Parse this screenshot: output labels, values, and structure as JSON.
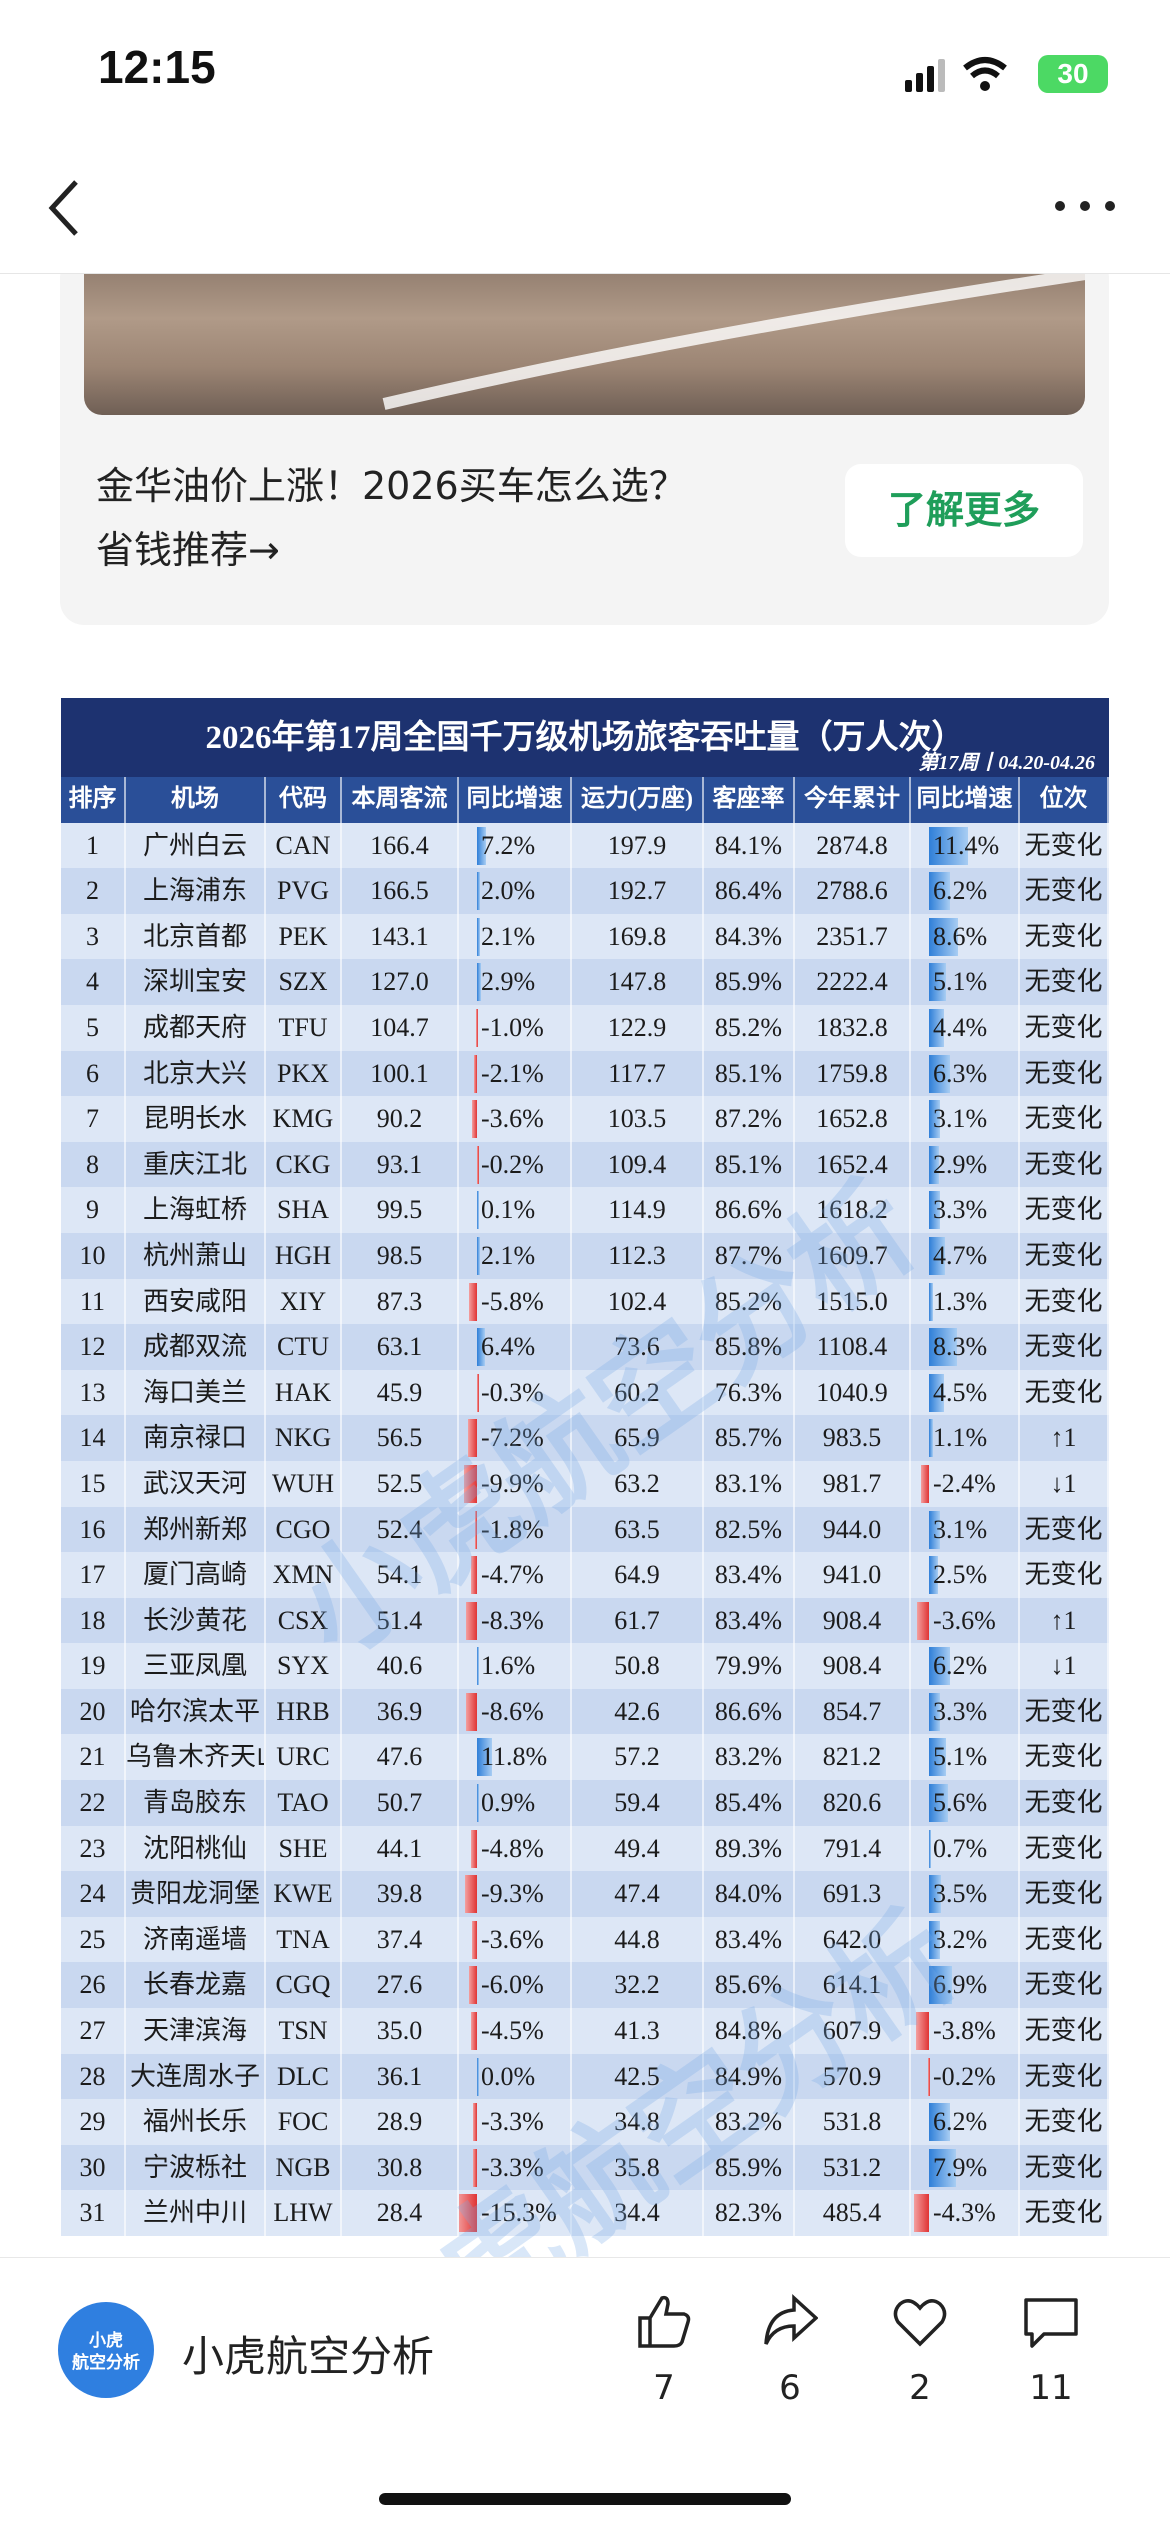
{
  "status_bar": {
    "time": "12:15",
    "battery": "30"
  },
  "ad": {
    "text_line1": "金华油价上涨！2026买车怎么选？",
    "text_line2": "省钱推荐→",
    "button": "了解更多"
  },
  "table": {
    "title": "2026年第17周全国千万级机场旅客吞吐量（万人次）",
    "subtitle": "第17周丨04.20-04.26",
    "watermark": "小虎航空分析",
    "headers": [
      "排序",
      "机场",
      "代码",
      "本周客流",
      "同比增速",
      "运力(万座)",
      "客座率",
      "今年累计",
      "同比增速",
      "位次"
    ],
    "rows": [
      [
        "1",
        "广州白云",
        "CAN",
        "166.4",
        "7.2%",
        "197.9",
        "84.1%",
        "2874.8",
        "11.4%",
        "无变化"
      ],
      [
        "2",
        "上海浦东",
        "PVG",
        "166.5",
        "2.0%",
        "192.7",
        "86.4%",
        "2788.6",
        "6.2%",
        "无变化"
      ],
      [
        "3",
        "北京首都",
        "PEK",
        "143.1",
        "2.1%",
        "169.8",
        "84.3%",
        "2351.7",
        "8.6%",
        "无变化"
      ],
      [
        "4",
        "深圳宝安",
        "SZX",
        "127.0",
        "2.9%",
        "147.8",
        "85.9%",
        "2222.4",
        "5.1%",
        "无变化"
      ],
      [
        "5",
        "成都天府",
        "TFU",
        "104.7",
        "-1.0%",
        "122.9",
        "85.2%",
        "1832.8",
        "4.4%",
        "无变化"
      ],
      [
        "6",
        "北京大兴",
        "PKX",
        "100.1",
        "-2.1%",
        "117.7",
        "85.1%",
        "1759.8",
        "6.3%",
        "无变化"
      ],
      [
        "7",
        "昆明长水",
        "KMG",
        "90.2",
        "-3.6%",
        "103.5",
        "87.2%",
        "1652.8",
        "3.1%",
        "无变化"
      ],
      [
        "8",
        "重庆江北",
        "CKG",
        "93.1",
        "-0.2%",
        "109.4",
        "85.1%",
        "1652.4",
        "2.9%",
        "无变化"
      ],
      [
        "9",
        "上海虹桥",
        "SHA",
        "99.5",
        "0.1%",
        "114.9",
        "86.6%",
        "1618.2",
        "3.3%",
        "无变化"
      ],
      [
        "10",
        "杭州萧山",
        "HGH",
        "98.5",
        "2.1%",
        "112.3",
        "87.7%",
        "1609.7",
        "4.7%",
        "无变化"
      ],
      [
        "11",
        "西安咸阳",
        "XIY",
        "87.3",
        "-5.8%",
        "102.4",
        "85.2%",
        "1515.0",
        "1.3%",
        "无变化"
      ],
      [
        "12",
        "成都双流",
        "CTU",
        "63.1",
        "6.4%",
        "73.6",
        "85.8%",
        "1108.4",
        "8.3%",
        "无变化"
      ],
      [
        "13",
        "海口美兰",
        "HAK",
        "45.9",
        "-0.3%",
        "60.2",
        "76.3%",
        "1040.9",
        "4.5%",
        "无变化"
      ],
      [
        "14",
        "南京禄口",
        "NKG",
        "56.5",
        "-7.2%",
        "65.9",
        "85.7%",
        "983.5",
        "1.1%",
        "↑1"
      ],
      [
        "15",
        "武汉天河",
        "WUH",
        "52.5",
        "-9.9%",
        "63.2",
        "83.1%",
        "981.7",
        "-2.4%",
        "↓1"
      ],
      [
        "16",
        "郑州新郑",
        "CGO",
        "52.4",
        "-1.8%",
        "63.5",
        "82.5%",
        "944.0",
        "3.1%",
        "无变化"
      ],
      [
        "17",
        "厦门高崎",
        "XMN",
        "54.1",
        "-4.7%",
        "64.9",
        "83.4%",
        "941.0",
        "2.5%",
        "无变化"
      ],
      [
        "18",
        "长沙黄花",
        "CSX",
        "51.4",
        "-8.3%",
        "61.7",
        "83.4%",
        "908.4",
        "-3.6%",
        "↑1"
      ],
      [
        "19",
        "三亚凤凰",
        "SYX",
        "40.6",
        "1.6%",
        "50.8",
        "79.9%",
        "908.4",
        "6.2%",
        "↓1"
      ],
      [
        "20",
        "哈尔滨太平",
        "HRB",
        "36.9",
        "-8.6%",
        "42.6",
        "86.6%",
        "854.7",
        "3.3%",
        "无变化"
      ],
      [
        "21",
        "乌鲁木齐天山",
        "URC",
        "47.6",
        "11.8%",
        "57.2",
        "83.2%",
        "821.2",
        "5.1%",
        "无变化"
      ],
      [
        "22",
        "青岛胶东",
        "TAO",
        "50.7",
        "0.9%",
        "59.4",
        "85.4%",
        "820.6",
        "5.6%",
        "无变化"
      ],
      [
        "23",
        "沈阳桃仙",
        "SHE",
        "44.1",
        "-4.8%",
        "49.4",
        "89.3%",
        "791.4",
        "0.7%",
        "无变化"
      ],
      [
        "24",
        "贵阳龙洞堡",
        "KWE",
        "39.8",
        "-9.3%",
        "47.4",
        "84.0%",
        "691.3",
        "3.5%",
        "无变化"
      ],
      [
        "25",
        "济南遥墙",
        "TNA",
        "37.4",
        "-3.6%",
        "44.8",
        "83.4%",
        "642.0",
        "3.2%",
        "无变化"
      ],
      [
        "26",
        "长春龙嘉",
        "CGQ",
        "27.6",
        "-6.0%",
        "32.2",
        "85.6%",
        "614.1",
        "6.9%",
        "无变化"
      ],
      [
        "27",
        "天津滨海",
        "TSN",
        "35.0",
        "-4.5%",
        "41.3",
        "84.8%",
        "607.9",
        "-3.8%",
        "无变化"
      ],
      [
        "28",
        "大连周水子",
        "DLC",
        "36.1",
        "0.0%",
        "42.5",
        "84.9%",
        "570.9",
        "-0.2%",
        "无变化"
      ],
      [
        "29",
        "福州长乐",
        "FOC",
        "28.9",
        "-3.3%",
        "34.8",
        "83.2%",
        "531.8",
        "6.2%",
        "无变化"
      ],
      [
        "30",
        "宁波栎社",
        "NGB",
        "30.8",
        "-3.3%",
        "35.8",
        "85.9%",
        "531.2",
        "7.9%",
        "无变化"
      ],
      [
        "31",
        "兰州中川",
        "LHW",
        "28.4",
        "-15.3%",
        "34.4",
        "82.3%",
        "485.4",
        "-4.3%",
        "无变化"
      ]
    ]
  },
  "account": {
    "logo_line1": "小虎",
    "logo_line2": "航空分析",
    "name": "小虎航空分析"
  },
  "actions": {
    "like": "7",
    "share": "6",
    "favorite": "2",
    "comment": "11"
  }
}
